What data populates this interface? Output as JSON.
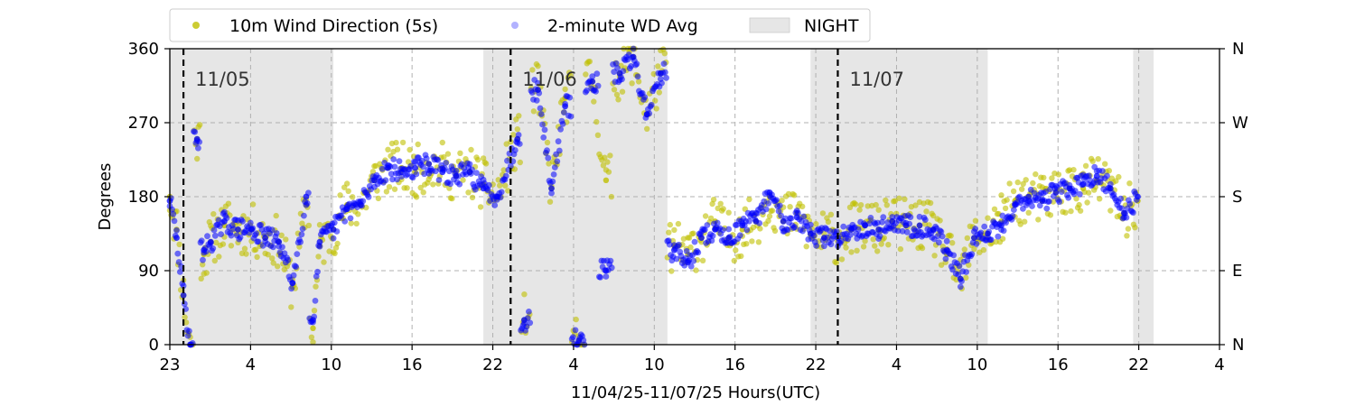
{
  "chart_data": {
    "type": "scatter",
    "xlabel": "11/04/25-11/07/25  Hours(UTC)",
    "ylabel": "Degrees",
    "ylim": [
      0,
      360
    ],
    "xlim": [
      "11/04 23:00",
      "11/08 04:00"
    ],
    "x_ticks": [
      "23",
      "4",
      "10",
      "16",
      "22",
      "4",
      "10",
      "16",
      "22",
      "4",
      "10",
      "16",
      "22",
      "4"
    ],
    "y_ticks": [
      "0",
      "90",
      "180",
      "270",
      "360"
    ],
    "right_ticks": [
      "N",
      "E",
      "S",
      "W",
      "N"
    ],
    "grid": true,
    "legend_position": "top",
    "legend": [
      {
        "label": "10m Wind Direction (5s)",
        "color": "#bfbf00"
      },
      {
        "label": "2-minute WD Avg",
        "color": "#0000ff"
      },
      {
        "label": "NIGHT",
        "color": "#e6e6e6"
      }
    ],
    "day_labels": [
      {
        "text": "11/05",
        "at": "11/05 00:00"
      },
      {
        "text": "11/06",
        "at": "11/06 00:00"
      },
      {
        "text": "11/07",
        "at": "11/07 00:00"
      }
    ],
    "day_boundaries": [
      "11/05 00:00",
      "11/06 00:00",
      "11/07 00:00"
    ],
    "night_periods": [
      [
        "11/04 23:00",
        "11/05 11:00"
      ],
      [
        "11/05 22:00",
        "11/06 11:30"
      ],
      [
        "11/06 22:00",
        "11/07 11:00"
      ],
      [
        "11/07 21:40",
        "11/07 23:10"
      ]
    ],
    "series": [
      {
        "name": "10m Wind Direction (5s)",
        "color": "#bfbf00",
        "points": [
          [
            "11/04 23:00",
            180
          ],
          [
            "11/04 23:30",
            140
          ],
          [
            "11/05 00:00",
            60
          ],
          [
            "11/05 00:30",
            0
          ],
          [
            "11/05 01:00",
            250
          ],
          [
            "11/05 01:30",
            110
          ],
          [
            "11/05 02:00",
            125
          ],
          [
            "11/05 03:00",
            145
          ],
          [
            "11/05 04:00",
            140
          ],
          [
            "11/05 05:00",
            140
          ],
          [
            "11/05 06:00",
            130
          ],
          [
            "11/05 07:00",
            125
          ],
          [
            "11/05 08:00",
            70
          ],
          [
            "11/05 09:00",
            170
          ],
          [
            "11/05 09:30",
            20
          ],
          [
            "11/05 10:00",
            120
          ],
          [
            "11/05 11:00",
            140
          ],
          [
            "11/05 12:00",
            170
          ],
          [
            "11/05 13:00",
            170
          ],
          [
            "11/05 14:00",
            200
          ],
          [
            "11/05 15:00",
            215
          ],
          [
            "11/05 16:00",
            215
          ],
          [
            "11/05 17:00",
            210
          ],
          [
            "11/05 18:00",
            220
          ],
          [
            "11/05 19:00",
            215
          ],
          [
            "11/05 20:00",
            205
          ],
          [
            "11/05 21:00",
            210
          ],
          [
            "11/05 22:00",
            195
          ],
          [
            "11/05 23:00",
            180
          ],
          [
            "11/06 00:30",
            250
          ],
          [
            "11/06 01:00",
            30
          ],
          [
            "11/06 02:00",
            310
          ],
          [
            "11/06 03:00",
            190
          ],
          [
            "11/06 04:00",
            300
          ],
          [
            "11/06 05:00",
            5
          ],
          [
            "11/06 06:00",
            320
          ],
          [
            "11/06 07:00",
            200
          ],
          [
            "11/06 08:00",
            330
          ],
          [
            "11/06 09:00",
            350
          ],
          [
            "11/06 10:00",
            280
          ],
          [
            "11/06 11:00",
            330
          ],
          [
            "11/06 12:00",
            120
          ],
          [
            "11/06 13:00",
            110
          ],
          [
            "11/06 14:00",
            130
          ],
          [
            "11/06 15:00",
            150
          ],
          [
            "11/06 16:00",
            130
          ],
          [
            "11/06 17:00",
            140
          ],
          [
            "11/06 18:00",
            150
          ],
          [
            "11/06 19:00",
            180
          ],
          [
            "11/06 20:00",
            150
          ],
          [
            "11/06 21:00",
            160
          ],
          [
            "11/06 22:00",
            135
          ],
          [
            "11/06 23:00",
            130
          ],
          [
            "11/07 00:00",
            130
          ],
          [
            "11/07 01:00",
            140
          ],
          [
            "11/07 02:00",
            145
          ],
          [
            "11/07 03:00",
            140
          ],
          [
            "11/07 04:00",
            150
          ],
          [
            "11/07 05:00",
            145
          ],
          [
            "11/07 06:00",
            145
          ],
          [
            "11/07 07:00",
            140
          ],
          [
            "11/07 08:00",
            110
          ],
          [
            "11/07 09:00",
            80
          ],
          [
            "11/07 10:00",
            130
          ],
          [
            "11/07 11:00",
            135
          ],
          [
            "11/07 12:00",
            150
          ],
          [
            "11/07 13:00",
            175
          ],
          [
            "11/07 14:00",
            180
          ],
          [
            "11/07 15:00",
            175
          ],
          [
            "11/07 16:00",
            185
          ],
          [
            "11/07 17:00",
            190
          ],
          [
            "11/07 18:00",
            190
          ],
          [
            "11/07 19:00",
            200
          ],
          [
            "11/07 20:00",
            190
          ],
          [
            "11/07 21:00",
            160
          ],
          [
            "11/07 22:00",
            175
          ]
        ]
      },
      {
        "name": "2-minute WD Avg",
        "color": "#0000ff",
        "points": [
          [
            "11/04 23:00",
            175
          ],
          [
            "11/04 23:30",
            130
          ],
          [
            "11/05 00:00",
            60
          ],
          [
            "11/05 00:30",
            0
          ],
          [
            "11/05 01:00",
            250
          ],
          [
            "11/05 01:30",
            115
          ],
          [
            "11/05 02:00",
            125
          ],
          [
            "11/05 03:00",
            150
          ],
          [
            "11/05 04:00",
            140
          ],
          [
            "11/05 05:00",
            140
          ],
          [
            "11/05 06:00",
            130
          ],
          [
            "11/05 07:00",
            125
          ],
          [
            "11/05 08:00",
            75
          ],
          [
            "11/05 09:00",
            180
          ],
          [
            "11/05 09:30",
            30
          ],
          [
            "11/05 10:00",
            125
          ],
          [
            "11/05 11:00",
            140
          ],
          [
            "11/05 12:00",
            165
          ],
          [
            "11/05 13:00",
            170
          ],
          [
            "11/05 14:00",
            200
          ],
          [
            "11/05 15:00",
            215
          ],
          [
            "11/05 16:00",
            210
          ],
          [
            "11/05 17:00",
            215
          ],
          [
            "11/05 18:00",
            220
          ],
          [
            "11/05 19:00",
            210
          ],
          [
            "11/05 20:00",
            205
          ],
          [
            "11/05 21:00",
            210
          ],
          [
            "11/05 22:00",
            190
          ],
          [
            "11/05 23:00",
            180
          ],
          [
            "11/06 00:30",
            250
          ],
          [
            "11/06 01:00",
            30
          ],
          [
            "11/06 02:00",
            310
          ],
          [
            "11/06 03:00",
            190
          ],
          [
            "11/06 04:00",
            290
          ],
          [
            "11/06 05:00",
            5
          ],
          [
            "11/06 06:00",
            320
          ],
          [
            "11/06 07:00",
            90
          ],
          [
            "11/06 08:00",
            330
          ],
          [
            "11/06 09:00",
            350
          ],
          [
            "11/06 10:00",
            280
          ],
          [
            "11/06 11:00",
            330
          ],
          [
            "11/06 12:00",
            115
          ],
          [
            "11/06 13:00",
            100
          ],
          [
            "11/06 14:00",
            130
          ],
          [
            "11/06 15:00",
            140
          ],
          [
            "11/06 16:00",
            130
          ],
          [
            "11/06 17:00",
            145
          ],
          [
            "11/06 18:00",
            150
          ],
          [
            "11/06 19:00",
            185
          ],
          [
            "11/06 20:00",
            150
          ],
          [
            "11/06 21:00",
            155
          ],
          [
            "11/06 22:00",
            135
          ],
          [
            "11/06 23:00",
            130
          ],
          [
            "11/07 00:00",
            130
          ],
          [
            "11/07 01:00",
            140
          ],
          [
            "11/07 02:00",
            145
          ],
          [
            "11/07 03:00",
            140
          ],
          [
            "11/07 04:00",
            150
          ],
          [
            "11/07 05:00",
            145
          ],
          [
            "11/07 06:00",
            145
          ],
          [
            "11/07 07:00",
            140
          ],
          [
            "11/07 08:00",
            115
          ],
          [
            "11/07 09:00",
            80
          ],
          [
            "11/07 10:00",
            130
          ],
          [
            "11/07 11:00",
            135
          ],
          [
            "11/07 12:00",
            145
          ],
          [
            "11/07 13:00",
            170
          ],
          [
            "11/07 14:00",
            180
          ],
          [
            "11/07 15:00",
            175
          ],
          [
            "11/07 16:00",
            185
          ],
          [
            "11/07 17:00",
            190
          ],
          [
            "11/07 18:00",
            195
          ],
          [
            "11/07 19:00",
            205
          ],
          [
            "11/07 20:00",
            190
          ],
          [
            "11/07 21:00",
            160
          ],
          [
            "11/07 22:00",
            180
          ]
        ]
      }
    ]
  }
}
